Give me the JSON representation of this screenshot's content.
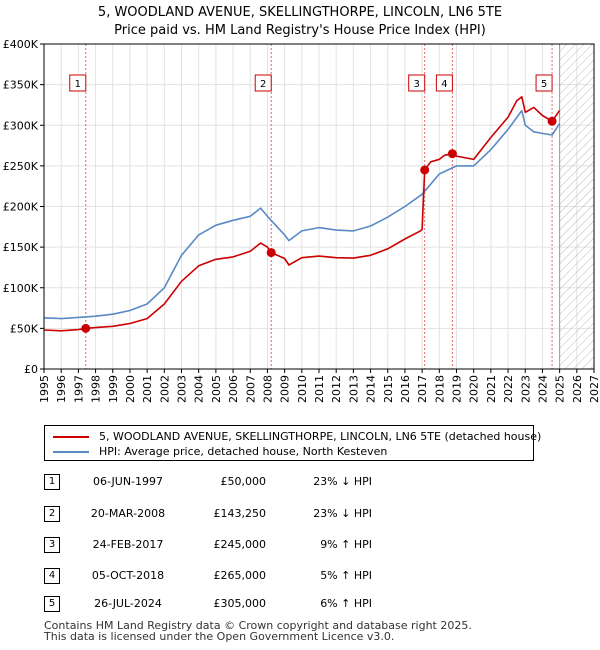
{
  "title_line1": "5, WOODLAND AVENUE, SKELLINGTHORPE, LINCOLN, LN6 5TE",
  "title_line2": "Price paid vs. HM Land Registry's House Price Index (HPI)",
  "chart_data": {
    "type": "line",
    "xlim": [
      1995,
      2027
    ],
    "ylim": [
      0,
      400000
    ],
    "y_ticks": [
      0,
      50000,
      100000,
      150000,
      200000,
      250000,
      300000,
      350000,
      400000
    ],
    "y_tick_labels": [
      "£0",
      "£50K",
      "£100K",
      "£150K",
      "£200K",
      "£250K",
      "£300K",
      "£350K",
      "£400K"
    ],
    "x_ticks": [
      1995,
      1996,
      1997,
      1998,
      1999,
      2000,
      2001,
      2002,
      2003,
      2004,
      2005,
      2006,
      2007,
      2008,
      2009,
      2010,
      2011,
      2012,
      2013,
      2014,
      2015,
      2016,
      2017,
      2018,
      2019,
      2020,
      2021,
      2022,
      2023,
      2024,
      2025,
      2026,
      2027
    ],
    "forecast_start": 2025.0,
    "series": [
      {
        "name": "5, WOODLAND AVENUE, SKELLINGTHORPE, LINCOLN, LN6 5TE (detached house)",
        "color": "#cc0000",
        "x": [
          1995.0,
          1996.0,
          1997.0,
          1997.43,
          1998.0,
          1999.0,
          2000.0,
          2001.0,
          2002.0,
          2003.0,
          2004.0,
          2005.0,
          2006.0,
          2007.0,
          2007.6,
          2008.0,
          2008.22,
          2009.0,
          2009.25,
          2010.0,
          2011.0,
          2012.0,
          2013.0,
          2014.0,
          2015.0,
          2016.0,
          2016.9,
          2017.0,
          2017.15,
          2017.5,
          2018.0,
          2018.3,
          2018.76,
          2019.0,
          2020.0,
          2021.0,
          2022.0,
          2022.5,
          2022.8,
          2023.0,
          2023.5,
          2024.0,
          2024.56,
          2025.0
        ],
        "y": [
          48000,
          47000,
          48500,
          50000,
          51000,
          52500,
          56000,
          62000,
          80000,
          108000,
          127000,
          135000,
          138000,
          145000,
          155000,
          150000,
          143250,
          136000,
          128000,
          137000,
          139000,
          137000,
          136500,
          140000,
          148000,
          160000,
          170000,
          172000,
          245000,
          255000,
          258000,
          263000,
          265000,
          262000,
          258000,
          285000,
          310000,
          330000,
          335000,
          316000,
          322000,
          312000,
          305000,
          318000
        ]
      },
      {
        "name": "HPI: Average price, detached house, North Kesteven",
        "color": "#5a8ac6",
        "x": [
          1995.0,
          1996.0,
          1997.0,
          1998.0,
          1999.0,
          2000.0,
          2001.0,
          2002.0,
          2003.0,
          2004.0,
          2005.0,
          2006.0,
          2007.0,
          2007.6,
          2008.0,
          2009.0,
          2009.25,
          2010.0,
          2011.0,
          2012.0,
          2013.0,
          2014.0,
          2015.0,
          2016.0,
          2017.0,
          2018.0,
          2019.0,
          2020.0,
          2021.0,
          2022.0,
          2022.8,
          2023.0,
          2023.5,
          2024.0,
          2024.56,
          2025.0
        ],
        "y": [
          63000,
          62000,
          63500,
          65000,
          67500,
          72000,
          80000,
          100000,
          140000,
          165000,
          177000,
          183000,
          188000,
          198000,
          188000,
          165000,
          158000,
          170000,
          174000,
          171000,
          170000,
          176000,
          187000,
          200000,
          215000,
          240000,
          250000,
          250000,
          270000,
          295000,
          318000,
          300000,
          292000,
          290000,
          288000,
          302000
        ]
      }
    ],
    "markers": [
      {
        "label": "1",
        "x": 1997.43,
        "y": 50000
      },
      {
        "label": "2",
        "x": 2008.22,
        "y": 143250
      },
      {
        "label": "3",
        "x": 2017.15,
        "y": 245000
      },
      {
        "label": "4",
        "x": 2018.76,
        "y": 265000
      },
      {
        "label": "5",
        "x": 2024.56,
        "y": 305000
      }
    ]
  },
  "legend": {
    "property_label": "5, WOODLAND AVENUE, SKELLINGTHORPE, LINCOLN, LN6 5TE (detached house)",
    "hpi_label": "HPI: Average price, detached house, North Kesteven"
  },
  "transactions": [
    {
      "num": "1",
      "date": "06-JUN-1997",
      "price": "£50,000",
      "hpi": "23% ↓ HPI"
    },
    {
      "num": "2",
      "date": "20-MAR-2008",
      "price": "£143,250",
      "hpi": "23% ↓ HPI"
    },
    {
      "num": "3",
      "date": "24-FEB-2017",
      "price": "£245,000",
      "hpi": "9% ↑ HPI"
    },
    {
      "num": "4",
      "date": "05-OCT-2018",
      "price": "£265,000",
      "hpi": "5% ↑ HPI"
    },
    {
      "num": "5",
      "date": "26-JUL-2024",
      "price": "£305,000",
      "hpi": "6% ↑ HPI"
    }
  ],
  "footer_line1": "Contains HM Land Registry data © Crown copyright and database right 2025.",
  "footer_line2": "This data is licensed under the Open Government Licence v3.0."
}
